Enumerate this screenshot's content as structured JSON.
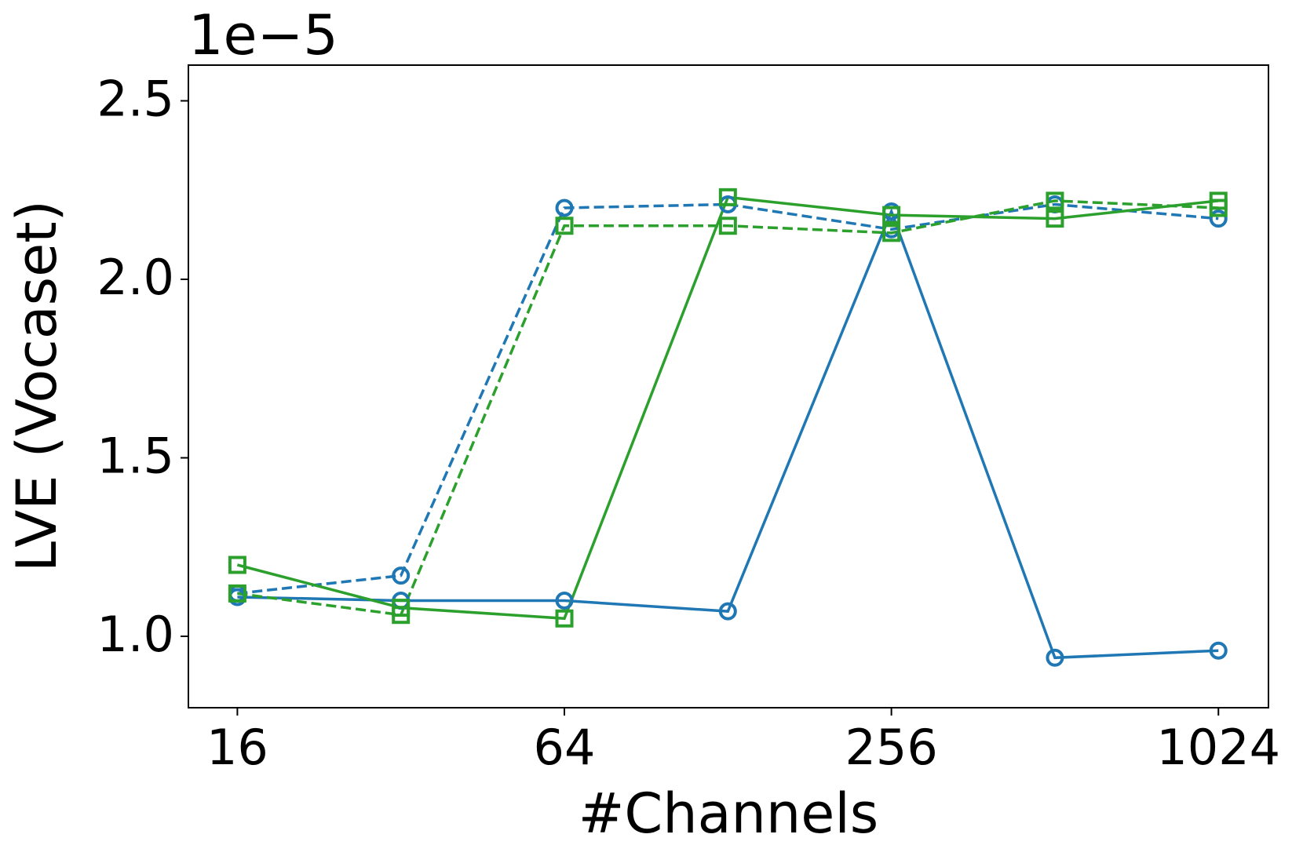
{
  "chart_data": {
    "type": "line",
    "x_label": "#Channels",
    "y_label": "LVE (Vocaset)",
    "y_offset_label": "1e−5",
    "x": [
      16,
      32,
      64,
      128,
      256,
      512,
      1024
    ],
    "xscale": "log",
    "xlog_base": 2,
    "xlim": [
      13,
      1266
    ],
    "xticks": [
      16,
      64,
      256,
      1024
    ],
    "ylim": [
      0.8,
      2.6
    ],
    "yticks": [
      {
        "value": 1.0,
        "label": "1.0"
      },
      1.5,
      {
        "value": 2.0,
        "label": "2.0"
      },
      2.5
    ],
    "grid": false,
    "series": [
      {
        "color": "#1f77b4",
        "linestyle": "solid",
        "marker": "circle",
        "values": [
          1.11,
          1.1,
          1.1,
          1.07,
          2.19,
          0.94,
          0.96
        ]
      },
      {
        "color": "#1f77b4",
        "linestyle": "dashed",
        "marker": "circle",
        "values": [
          1.12,
          1.17,
          2.2,
          2.21,
          2.14,
          2.21,
          2.17
        ]
      },
      {
        "color": "#2ca02c",
        "linestyle": "solid",
        "marker": "square",
        "values": [
          1.2,
          1.08,
          1.05,
          2.23,
          2.18,
          2.17,
          2.22
        ]
      },
      {
        "color": "#2ca02c",
        "linestyle": "dashed",
        "marker": "square",
        "values": [
          1.12,
          1.06,
          2.15,
          2.15,
          2.13,
          2.22,
          2.2
        ]
      }
    ]
  }
}
